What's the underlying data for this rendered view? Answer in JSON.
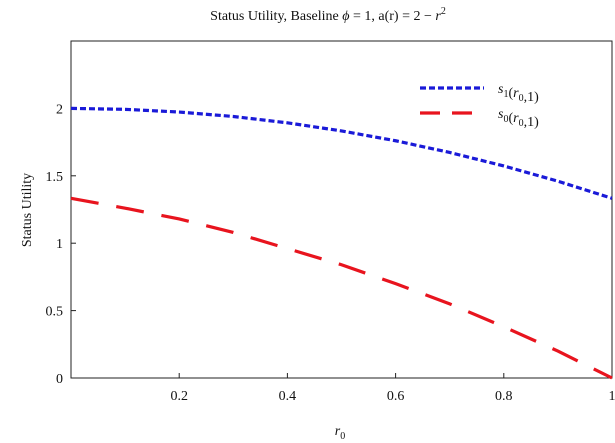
{
  "chart_data": {
    "type": "line",
    "title": "Status Utility, Baseline ϕ = 1, a(r) = 2 − r²",
    "title_parts": {
      "prefix": "Status Utility, Baseline ",
      "phi_symbol": "ϕ",
      "middle": " = 1, a(r) = 2 − ",
      "r_symbol": "r",
      "exponent": "2"
    },
    "xlabel": "r",
    "xlabel_subscript": "0",
    "ylabel": "Status Utility",
    "xlim": [
      0,
      1
    ],
    "ylim": [
      0,
      2.5
    ],
    "x_ticks": [
      {
        "value": 0.2,
        "label": "0.2"
      },
      {
        "value": 0.4,
        "label": "0.4"
      },
      {
        "value": 0.6,
        "label": "0.6"
      },
      {
        "value": 0.8,
        "label": "0.8"
      },
      {
        "value": 1,
        "label": "1"
      }
    ],
    "y_ticks": [
      {
        "value": 0,
        "label": "0"
      },
      {
        "value": 0.5,
        "label": "0.5"
      },
      {
        "value": 1,
        "label": "1"
      },
      {
        "value": 1.5,
        "label": "1.5"
      },
      {
        "value": 2,
        "label": "2"
      }
    ],
    "grid": false,
    "legend_position": "top-right",
    "series": [
      {
        "name": "s1(r0,1)",
        "legend_base": "s",
        "legend_sub": "1",
        "legend_mid": "(r",
        "legend_sub2": "0",
        "legend_end": ",1)",
        "color": "#1a1ad8",
        "dash": "short",
        "x": [
          0,
          0.1,
          0.2,
          0.3,
          0.4,
          0.5,
          0.6,
          0.7,
          0.8,
          0.9,
          1.0
        ],
        "y": [
          2.0,
          1.993,
          1.973,
          1.94,
          1.893,
          1.833,
          1.76,
          1.673,
          1.573,
          1.46,
          1.333
        ]
      },
      {
        "name": "s0(r0,1)",
        "legend_base": "s",
        "legend_sub": "0",
        "legend_mid": "(r",
        "legend_sub2": "0",
        "legend_end": ",1)",
        "color": "#e8141e",
        "dash": "long",
        "x": [
          0,
          0.1,
          0.2,
          0.3,
          0.4,
          0.5,
          0.6,
          0.7,
          0.8,
          0.9,
          1.0
        ],
        "y": [
          1.333,
          1.26,
          1.18,
          1.08,
          0.96,
          0.84,
          0.7,
          0.55,
          0.38,
          0.2,
          0.0
        ]
      }
    ]
  }
}
